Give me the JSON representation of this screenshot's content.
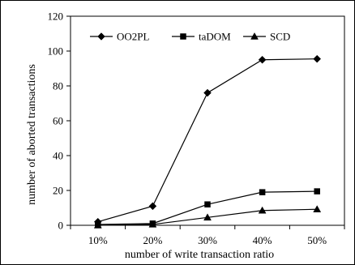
{
  "chart_data": {
    "type": "line",
    "title": "",
    "xlabel": "number of write transaction ratio",
    "ylabel": "number of aborted transactions",
    "categories": [
      "10%",
      "20%",
      "30%",
      "40%",
      "50%"
    ],
    "ylim": [
      0,
      120
    ],
    "yticks": [
      "0",
      "20",
      "40",
      "60",
      "80",
      "100",
      "120"
    ],
    "grid": false,
    "legend_position": "top",
    "series": [
      {
        "name": "OO2PL",
        "marker": "diamond",
        "values": [
          2,
          11,
          76,
          95,
          95.5
        ]
      },
      {
        "name": "taDOM",
        "marker": "square",
        "values": [
          0.5,
          1,
          12,
          19,
          19.5
        ]
      },
      {
        "name": "SCD",
        "marker": "triangle",
        "values": [
          0,
          0.5,
          4.5,
          8.5,
          9.2
        ]
      }
    ],
    "colors": {
      "line": "#000000",
      "background": "#ffffff"
    }
  }
}
